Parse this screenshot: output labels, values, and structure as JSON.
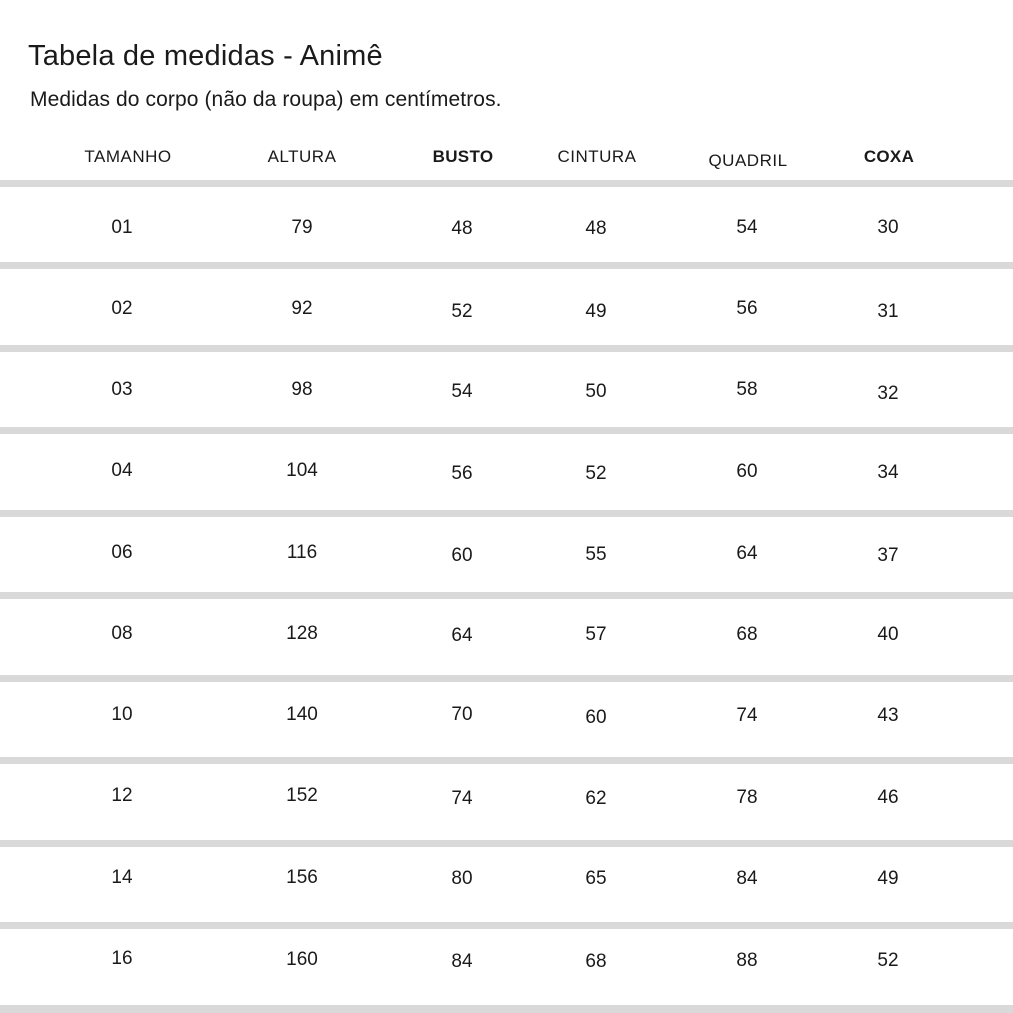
{
  "page": {
    "title": "Tabela de medidas - Animê",
    "subtitle": "Medidas do corpo (não da roupa) em centímetros."
  },
  "table": {
    "headers": [
      "TAMANHO",
      "ALTURA",
      "BUSTO",
      "CINTURA",
      "QUADRIL",
      "COXA"
    ],
    "rows": [
      {
        "cells": [
          "01",
          "79",
          "48",
          "48",
          "54",
          "30"
        ]
      },
      {
        "cells": [
          "02",
          "92",
          "52",
          "49",
          "56",
          "31"
        ]
      },
      {
        "cells": [
          "03",
          "98",
          "54",
          "50",
          "58",
          "32"
        ]
      },
      {
        "cells": [
          "04",
          "104",
          "56",
          "52",
          "60",
          "34"
        ]
      },
      {
        "cells": [
          "06",
          "116",
          "60",
          "55",
          "64",
          "37"
        ]
      },
      {
        "cells": [
          "08",
          "128",
          "64",
          "57",
          "68",
          "40"
        ]
      },
      {
        "cells": [
          "10",
          "140",
          "70",
          "60",
          "74",
          "43"
        ]
      },
      {
        "cells": [
          "12",
          "152",
          "74",
          "62",
          "78",
          "46"
        ]
      },
      {
        "cells": [
          "14",
          "156",
          "80",
          "65",
          "84",
          "49"
        ]
      },
      {
        "cells": [
          "16",
          "160",
          "84",
          "68",
          "88",
          "52"
        ]
      }
    ]
  },
  "colors": {
    "background": "#ffffff",
    "text": "#1a1a1a",
    "divider": "#d9d9d9"
  }
}
